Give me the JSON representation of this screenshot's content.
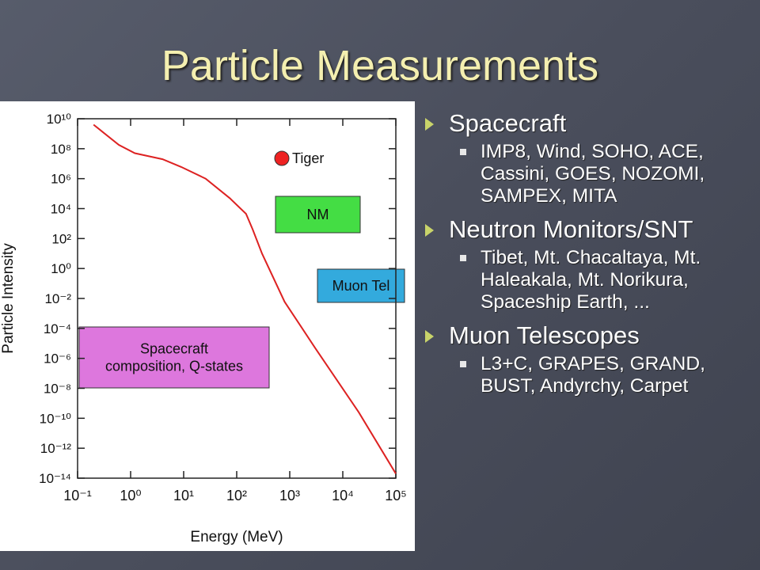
{
  "slide": {
    "title": "Particle Measurements",
    "bullets": [
      {
        "text": "Spacecraft",
        "items": [
          "IMP8, Wind, SOHO, ACE, Cassini, GOES, NOZOMI, SAMPEX, MITA"
        ]
      },
      {
        "text": "Neutron Monitors/SNT",
        "items": [
          "Tibet, Mt. Chacaltaya, Mt. Haleakala, Mt. Norikura, Spaceship Earth, ..."
        ]
      },
      {
        "text": "Muon Telescopes",
        "items": [
          "L3+C, GRAPES, GRAND, BUST, Andyrchy, Carpet"
        ]
      }
    ]
  },
  "chart_data": {
    "type": "line",
    "x_label": "Energy (MeV)",
    "y_label": "Particle Intensity",
    "xscale": "log",
    "yscale": "log",
    "xlim": [
      0.1,
      100000
    ],
    "ylim": [
      1e-14,
      10000000000.0
    ],
    "xticks": [
      {
        "value": 0.1,
        "label": "10⁻¹"
      },
      {
        "value": 1,
        "label": "10⁰"
      },
      {
        "value": 10,
        "label": "10¹"
      },
      {
        "value": 100,
        "label": "10²"
      },
      {
        "value": 1000,
        "label": "10³"
      },
      {
        "value": 10000,
        "label": "10⁴"
      },
      {
        "value": 100000,
        "label": "10⁵"
      }
    ],
    "yticks": [
      {
        "value": 10000000000.0,
        "label": "10¹⁰"
      },
      {
        "value": 100000000.0,
        "label": "10⁸"
      },
      {
        "value": 1000000.0,
        "label": "10⁶"
      },
      {
        "value": 10000.0,
        "label": "10⁴"
      },
      {
        "value": 100,
        "label": "10²"
      },
      {
        "value": 1,
        "label": "10⁰"
      },
      {
        "value": 0.01,
        "label": "10⁻²"
      },
      {
        "value": 0.0001,
        "label": "10⁻⁴"
      },
      {
        "value": 1e-06,
        "label": "10⁻⁶"
      },
      {
        "value": 1e-08,
        "label": "10⁻⁸"
      },
      {
        "value": 1e-10,
        "label": "10⁻¹⁰"
      },
      {
        "value": 1e-12,
        "label": "10⁻¹²"
      },
      {
        "value": 1e-14,
        "label": "10⁻¹⁴"
      }
    ],
    "series": [
      {
        "color": "#dd2222",
        "x": [
          0.2,
          0.6,
          1.2,
          4,
          9,
          26,
          74,
          150,
          200,
          300,
          800,
          3000,
          20000,
          100000
        ],
        "values": [
          4000000000.0,
          180000000.0,
          50000000.0,
          20000000.0,
          6000000.0,
          1000000.0,
          50000.0,
          4500,
          400,
          10,
          0.006,
          5e-06,
          2.5e-10,
          2e-14
        ]
      }
    ],
    "annotations": [
      {
        "lines": [
          "Tiger"
        ],
        "color": "#ee2222"
      },
      {
        "lines": [
          "NM"
        ],
        "color": "#44dd44"
      },
      {
        "lines": [
          "Muon Tel"
        ],
        "color": "#33aadd"
      },
      {
        "lines": [
          "Spacecraft",
          "composition, Q-states"
        ],
        "color": "#dd77dd"
      }
    ]
  }
}
